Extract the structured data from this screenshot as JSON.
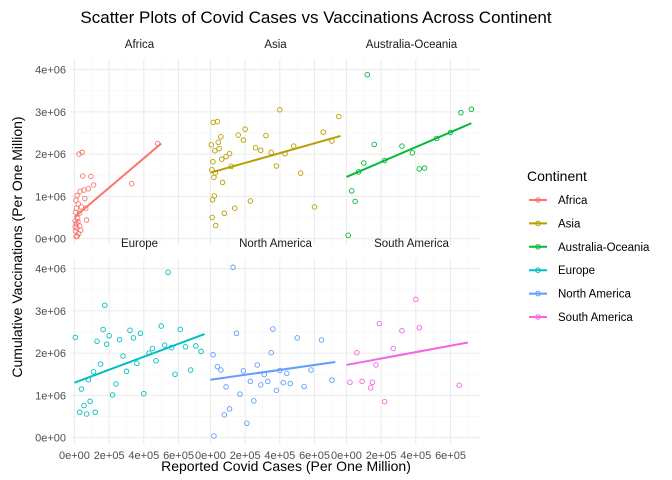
{
  "chart_data": {
    "type": "scatter",
    "title": "Scatter Plots of Covid Cases vs Vaccinations Across Continent",
    "xlabel": "Reported Covid Cases (Per One Million)",
    "ylabel": "Cumulative Vaccinations (Per One Million)",
    "xlim": [
      -20000,
      770000
    ],
    "ylim": [
      -150000,
      4250000
    ],
    "x_ticks": [
      0,
      200000,
      400000,
      600000
    ],
    "x_tick_labels": [
      "0e+00",
      "2e+05",
      "4e+05",
      "6e+05"
    ],
    "y_ticks": [
      0,
      1000000,
      2000000,
      3000000,
      4000000
    ],
    "y_tick_labels": [
      "0e+00",
      "1e+06",
      "2e+06",
      "3e+06",
      "4e+06"
    ],
    "grid": true,
    "legend": {
      "title": "Continent",
      "position": "right"
    },
    "series": [
      {
        "name": "Africa",
        "color": "#F8766D",
        "fit_line": [
          [
            0,
            510000
          ],
          [
            500000,
            2250000
          ]
        ],
        "points": [
          [
            4000,
            280000
          ],
          [
            4000,
            420000
          ],
          [
            6000,
            180000
          ],
          [
            7000,
            620000
          ],
          [
            8000,
            910000
          ],
          [
            9000,
            50000
          ],
          [
            10000,
            350000
          ],
          [
            12000,
            720000
          ],
          [
            14000,
            250000
          ],
          [
            15000,
            1020000
          ],
          [
            16000,
            60000
          ],
          [
            18000,
            480000
          ],
          [
            20000,
            400000
          ],
          [
            22000,
            820000
          ],
          [
            24000,
            120000
          ],
          [
            26000,
            2000000
          ],
          [
            28000,
            600000
          ],
          [
            30000,
            300000
          ],
          [
            33000,
            1120000
          ],
          [
            36000,
            200000
          ],
          [
            40000,
            750000
          ],
          [
            44000,
            2040000
          ],
          [
            48000,
            1480000
          ],
          [
            55000,
            1150000
          ],
          [
            60000,
            950000
          ],
          [
            65000,
            720000
          ],
          [
            70000,
            440000
          ],
          [
            80000,
            1180000
          ],
          [
            95000,
            1470000
          ],
          [
            110000,
            1270000
          ],
          [
            330000,
            1300000
          ],
          [
            480000,
            2250000
          ]
        ]
      },
      {
        "name": "Asia",
        "color": "#B79F00",
        "fit_line": [
          [
            0,
            1560000
          ],
          [
            750000,
            2430000
          ]
        ],
        "points": [
          [
            5000,
            2220000
          ],
          [
            8000,
            1630000
          ],
          [
            10000,
            500000
          ],
          [
            12000,
            920000
          ],
          [
            14000,
            1820000
          ],
          [
            16000,
            2750000
          ],
          [
            20000,
            1450000
          ],
          [
            22000,
            1010000
          ],
          [
            25000,
            2080000
          ],
          [
            28000,
            1560000
          ],
          [
            30000,
            310000
          ],
          [
            40000,
            2770000
          ],
          [
            45000,
            2280000
          ],
          [
            50000,
            2130000
          ],
          [
            60000,
            2410000
          ],
          [
            65000,
            1880000
          ],
          [
            70000,
            1330000
          ],
          [
            80000,
            600000
          ],
          [
            90000,
            1940000
          ],
          [
            110000,
            2010000
          ],
          [
            120000,
            1710000
          ],
          [
            140000,
            720000
          ],
          [
            160000,
            2450000
          ],
          [
            190000,
            2330000
          ],
          [
            200000,
            2590000
          ],
          [
            230000,
            890000
          ],
          [
            260000,
            2150000
          ],
          [
            290000,
            2090000
          ],
          [
            320000,
            2440000
          ],
          [
            350000,
            2040000
          ],
          [
            380000,
            1720000
          ],
          [
            400000,
            3050000
          ],
          [
            430000,
            2010000
          ],
          [
            480000,
            2190000
          ],
          [
            520000,
            1550000
          ],
          [
            600000,
            750000
          ],
          [
            650000,
            2520000
          ],
          [
            700000,
            2310000
          ],
          [
            740000,
            2890000
          ]
        ]
      },
      {
        "name": "Australia-Oceania",
        "color": "#00BA38",
        "fit_line": [
          [
            0,
            1460000
          ],
          [
            720000,
            2730000
          ]
        ],
        "points": [
          [
            10000,
            80000
          ],
          [
            30000,
            1130000
          ],
          [
            50000,
            880000
          ],
          [
            70000,
            1580000
          ],
          [
            100000,
            1790000
          ],
          [
            120000,
            3880000
          ],
          [
            160000,
            2230000
          ],
          [
            220000,
            1850000
          ],
          [
            320000,
            2190000
          ],
          [
            380000,
            2030000
          ],
          [
            420000,
            1650000
          ],
          [
            450000,
            1670000
          ],
          [
            520000,
            2370000
          ],
          [
            600000,
            2510000
          ],
          [
            660000,
            2980000
          ],
          [
            720000,
            3060000
          ]
        ]
      },
      {
        "name": "Europe",
        "color": "#00BFC4",
        "fit_line": [
          [
            0,
            1300000
          ],
          [
            750000,
            2450000
          ]
        ],
        "points": [
          [
            5000,
            2370000
          ],
          [
            30000,
            600000
          ],
          [
            40000,
            1150000
          ],
          [
            55000,
            760000
          ],
          [
            70000,
            560000
          ],
          [
            80000,
            1370000
          ],
          [
            90000,
            860000
          ],
          [
            110000,
            1560000
          ],
          [
            120000,
            600000
          ],
          [
            130000,
            2280000
          ],
          [
            150000,
            1740000
          ],
          [
            165000,
            2560000
          ],
          [
            175000,
            3130000
          ],
          [
            185000,
            2210000
          ],
          [
            200000,
            2410000
          ],
          [
            220000,
            1010000
          ],
          [
            240000,
            1270000
          ],
          [
            260000,
            2320000
          ],
          [
            280000,
            1930000
          ],
          [
            300000,
            1570000
          ],
          [
            320000,
            2540000
          ],
          [
            340000,
            2360000
          ],
          [
            360000,
            1760000
          ],
          [
            380000,
            2470000
          ],
          [
            400000,
            1040000
          ],
          [
            430000,
            2000000
          ],
          [
            450000,
            2110000
          ],
          [
            470000,
            1820000
          ],
          [
            500000,
            2640000
          ],
          [
            520000,
            2190000
          ],
          [
            540000,
            3910000
          ],
          [
            560000,
            2130000
          ],
          [
            580000,
            1500000
          ],
          [
            610000,
            2560000
          ],
          [
            640000,
            2150000
          ],
          [
            670000,
            1600000
          ],
          [
            700000,
            2170000
          ],
          [
            730000,
            2040000
          ]
        ]
      },
      {
        "name": "North America",
        "color": "#619CFF",
        "fit_line": [
          [
            0,
            1370000
          ],
          [
            720000,
            1790000
          ]
        ],
        "points": [
          [
            15000,
            1960000
          ],
          [
            20000,
            40000
          ],
          [
            40000,
            1680000
          ],
          [
            60000,
            1600000
          ],
          [
            80000,
            540000
          ],
          [
            90000,
            1200000
          ],
          [
            110000,
            680000
          ],
          [
            130000,
            4030000
          ],
          [
            150000,
            2470000
          ],
          [
            170000,
            1030000
          ],
          [
            190000,
            1580000
          ],
          [
            210000,
            340000
          ],
          [
            230000,
            1330000
          ],
          [
            250000,
            870000
          ],
          [
            270000,
            1720000
          ],
          [
            290000,
            1250000
          ],
          [
            310000,
            1490000
          ],
          [
            330000,
            1330000
          ],
          [
            350000,
            2010000
          ],
          [
            360000,
            2570000
          ],
          [
            380000,
            1120000
          ],
          [
            400000,
            1590000
          ],
          [
            420000,
            1300000
          ],
          [
            440000,
            1520000
          ],
          [
            460000,
            1280000
          ],
          [
            500000,
            2360000
          ],
          [
            540000,
            1210000
          ],
          [
            580000,
            1600000
          ],
          [
            640000,
            2310000
          ],
          [
            700000,
            1360000
          ]
        ]
      },
      {
        "name": "South America",
        "color": "#F564E3",
        "fit_line": [
          [
            0,
            1720000
          ],
          [
            700000,
            2250000
          ]
        ],
        "points": [
          [
            20000,
            1310000
          ],
          [
            60000,
            2010000
          ],
          [
            90000,
            1330000
          ],
          [
            140000,
            1180000
          ],
          [
            150000,
            1310000
          ],
          [
            170000,
            1720000
          ],
          [
            190000,
            2700000
          ],
          [
            220000,
            850000
          ],
          [
            270000,
            2110000
          ],
          [
            320000,
            2530000
          ],
          [
            400000,
            3270000
          ],
          [
            420000,
            2600000
          ],
          [
            650000,
            1240000
          ]
        ]
      }
    ]
  }
}
